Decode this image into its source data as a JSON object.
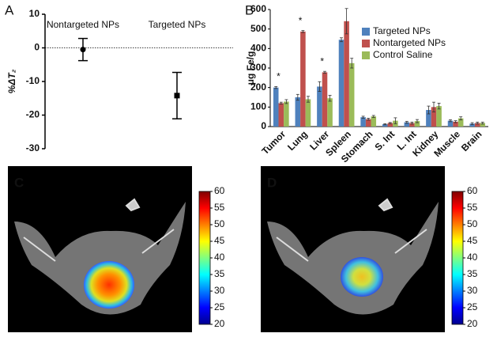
{
  "chart_data": [
    {
      "type": "dot",
      "label": "A",
      "ylabel": "%ΔT₂",
      "categories": [
        "Nontargeted NPs",
        "Targeted NPs"
      ],
      "values": [
        -0.5,
        -14.2
      ],
      "errors": [
        3.3,
        6.9
      ],
      "markers": [
        "circle",
        "square"
      ],
      "color": "#000000",
      "ylim": [
        -30,
        10
      ],
      "yticks": [
        10,
        0,
        -10,
        -20,
        -30
      ],
      "reference_line": 0
    },
    {
      "type": "bar",
      "label": "B",
      "ylabel": "μg Fe/g",
      "categories": [
        "Tumor",
        "Lung",
        "Liver",
        "Spleen",
        "Stomach",
        "S. Int",
        "L. Int",
        "Kidney",
        "Muscle",
        "Brain"
      ],
      "significance": [
        "*",
        "*",
        "*",
        null,
        null,
        null,
        null,
        null,
        null,
        null
      ],
      "series": [
        {
          "name": "Targeted NPs",
          "color": "#4f81bd",
          "values": [
            200,
            150,
            205,
            445,
            48,
            12,
            22,
            85,
            30,
            15
          ],
          "errors": [
            5,
            15,
            25,
            10,
            5,
            3,
            5,
            20,
            5,
            5
          ]
        },
        {
          "name": "Nontargeted NPs",
          "color": "#c0504d",
          "values": [
            120,
            487,
            278,
            540,
            38,
            18,
            18,
            100,
            25,
            18
          ],
          "errors": [
            5,
            5,
            5,
            65,
            5,
            3,
            5,
            25,
            5,
            5
          ]
        },
        {
          "name": "Control Saline",
          "color": "#9bbb59",
          "values": [
            128,
            140,
            145,
            325,
            52,
            30,
            28,
            105,
            42,
            18
          ],
          "errors": [
            10,
            15,
            15,
            25,
            5,
            15,
            8,
            15,
            8,
            5
          ]
        }
      ],
      "ylim": [
        0,
        600
      ],
      "yticks": [
        0,
        100,
        200,
        300,
        400,
        500,
        600
      ],
      "legend": "upper-right"
    },
    {
      "type": "image",
      "label": "C",
      "clim": [
        20,
        60
      ],
      "cticks": [
        20,
        25,
        30,
        35,
        40,
        45,
        50,
        55,
        60
      ],
      "colormap": "jet",
      "blob": "large"
    },
    {
      "type": "image",
      "label": "D",
      "clim": [
        20,
        60
      ],
      "cticks": [
        20,
        25,
        30,
        35,
        40,
        45,
        50,
        55,
        60
      ],
      "colormap": "jet",
      "blob": "small"
    }
  ]
}
